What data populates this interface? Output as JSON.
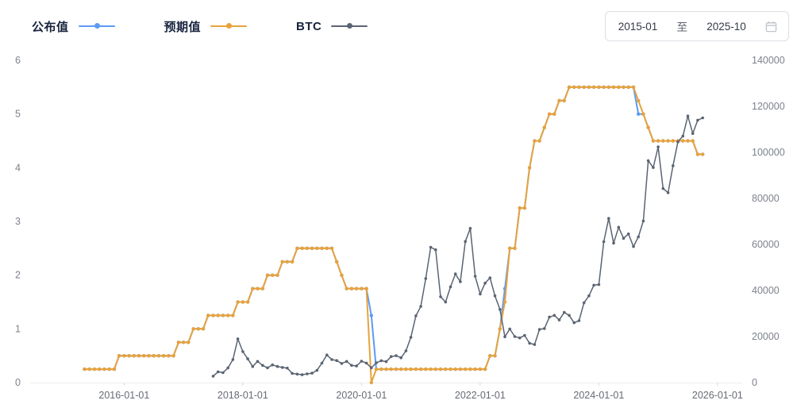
{
  "legend": {
    "items": [
      {
        "id": "announced",
        "label": "公布值",
        "color": "#5B9BF5"
      },
      {
        "id": "expected",
        "label": "预期值",
        "color": "#E8A23C"
      },
      {
        "id": "btc",
        "label": "BTC",
        "color": "#5A6472"
      }
    ]
  },
  "date_range": {
    "start": "2015-01",
    "separator": "至",
    "end": "2025-10"
  },
  "chart_data": {
    "type": "line",
    "title": "",
    "grid": false,
    "legend_position": "top-left",
    "x_domain": [
      "2014-06",
      "2026-06"
    ],
    "x_ticks": [
      "2016-01-01",
      "2018-01-01",
      "2020-01-01",
      "2022-01-01",
      "2024-01-01",
      "2026-01-01"
    ],
    "left_axis": {
      "min": 0,
      "max": 6,
      "ticks": [
        0,
        1,
        2,
        3,
        4,
        5,
        6
      ]
    },
    "right_axis": {
      "min": 0,
      "max": 140000,
      "ticks": [
        0,
        20000,
        40000,
        60000,
        80000,
        100000,
        120000,
        140000
      ]
    },
    "series": [
      {
        "id": "announced",
        "name": "公布值",
        "color": "#5B9BF5",
        "axis": "left",
        "start": "2015-05",
        "interval": "month",
        "line_width": 2,
        "dot_radius": 2.2,
        "values": [
          0.25,
          0.25,
          0.25,
          0.25,
          0.25,
          0.25,
          0.25,
          0.5,
          0.5,
          0.5,
          0.5,
          0.5,
          0.5,
          0.5,
          0.5,
          0.5,
          0.5,
          0.5,
          0.5,
          0.75,
          0.75,
          0.75,
          1,
          1,
          1,
          1.25,
          1.25,
          1.25,
          1.25,
          1.25,
          1.25,
          1.5,
          1.5,
          1.5,
          1.75,
          1.75,
          1.75,
          2,
          2,
          2,
          2.25,
          2.25,
          2.25,
          2.5,
          2.5,
          2.5,
          2.5,
          2.5,
          2.5,
          2.5,
          2.5,
          2.25,
          2,
          1.75,
          1.75,
          1.75,
          1.75,
          1.75,
          1.25,
          0.25,
          0.25,
          0.25,
          0.25,
          0.25,
          0.25,
          0.25,
          0.25,
          0.25,
          0.25,
          0.25,
          0.25,
          0.25,
          0.25,
          0.25,
          0.25,
          0.25,
          0.25,
          0.25,
          0.25,
          0.25,
          0.25,
          0.25,
          0.5,
          0.5,
          1,
          1.75,
          2.5,
          2.5,
          3.25,
          3.25,
          4,
          4.5,
          4.5,
          4.75,
          5,
          5,
          5.25,
          5.25,
          5.5,
          5.5,
          5.5,
          5.5,
          5.5,
          5.5,
          5.5,
          5.5,
          5.5,
          5.5,
          5.5,
          5.5,
          5.5,
          5.5,
          5,
          5,
          4.75,
          4.5,
          4.5,
          4.5,
          4.5,
          4.5,
          4.5,
          4.5,
          4.5,
          4.5,
          4.25,
          4.25
        ]
      },
      {
        "id": "expected",
        "name": "预期值",
        "color": "#E8A23C",
        "axis": "left",
        "start": "2015-05",
        "interval": "month",
        "line_width": 2,
        "dot_radius": 2.2,
        "values": [
          0.25,
          0.25,
          0.25,
          0.25,
          0.25,
          0.25,
          0.25,
          0.5,
          0.5,
          0.5,
          0.5,
          0.5,
          0.5,
          0.5,
          0.5,
          0.5,
          0.5,
          0.5,
          0.5,
          0.75,
          0.75,
          0.75,
          1,
          1,
          1,
          1.25,
          1.25,
          1.25,
          1.25,
          1.25,
          1.25,
          1.5,
          1.5,
          1.5,
          1.75,
          1.75,
          1.75,
          2,
          2,
          2,
          2.25,
          2.25,
          2.25,
          2.5,
          2.5,
          2.5,
          2.5,
          2.5,
          2.5,
          2.5,
          2.5,
          2.25,
          2,
          1.75,
          1.75,
          1.75,
          1.75,
          1.75,
          0,
          0.25,
          0.25,
          0.25,
          0.25,
          0.25,
          0.25,
          0.25,
          0.25,
          0.25,
          0.25,
          0.25,
          0.25,
          0.25,
          0.25,
          0.25,
          0.25,
          0.25,
          0.25,
          0.25,
          0.25,
          0.25,
          0.25,
          0.25,
          0.5,
          0.5,
          1,
          1.5,
          2.5,
          2.5,
          3.25,
          3.25,
          4,
          4.5,
          4.5,
          4.75,
          5,
          5,
          5.25,
          5.25,
          5.5,
          5.5,
          5.5,
          5.5,
          5.5,
          5.5,
          5.5,
          5.5,
          5.5,
          5.5,
          5.5,
          5.5,
          5.5,
          5.5,
          5.25,
          5,
          4.75,
          4.5,
          4.5,
          4.5,
          4.5,
          4.5,
          4.5,
          4.5,
          4.5,
          4.5,
          4.25,
          4.25
        ]
      },
      {
        "id": "btc",
        "name": "BTC",
        "color": "#5A6472",
        "axis": "right",
        "start": "2017-07",
        "interval": "month",
        "line_width": 1.5,
        "dot_radius": 1.8,
        "values": [
          2800,
          4700,
          4300,
          6400,
          10000,
          19000,
          13500,
          10300,
          7000,
          9200,
          7500,
          6400,
          7700,
          7000,
          6600,
          6300,
          4000,
          3700,
          3400,
          3800,
          4100,
          5300,
          8500,
          12000,
          10000,
          9600,
          8300,
          9200,
          7500,
          7200,
          9300,
          8500,
          6400,
          8600,
          9500,
          9100,
          11300,
          11700,
          10800,
          13800,
          19700,
          29000,
          33100,
          45200,
          58800,
          57700,
          37300,
          35000,
          41600,
          47200,
          43800,
          61300,
          67000,
          46200,
          38500,
          43200,
          45500,
          37700,
          31800,
          19900,
          23300,
          20000,
          19400,
          20500,
          17100,
          16500,
          23100,
          23500,
          28500,
          29200,
          27200,
          30500,
          29200,
          26000,
          26900,
          34700,
          37700,
          42300,
          42600,
          61200,
          71300,
          60600,
          67500,
          62700,
          64600,
          59100,
          63300,
          70200,
          96400,
          93400,
          102400,
          84300,
          82500,
          94200,
          104600,
          107100,
          115800,
          108200,
          114000,
          115000
        ]
      }
    ]
  }
}
